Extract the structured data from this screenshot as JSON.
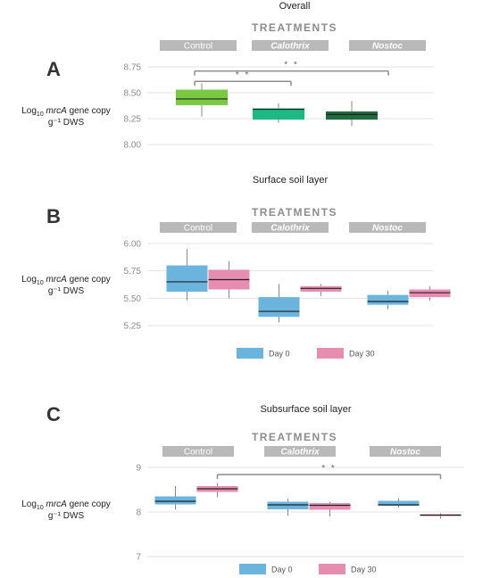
{
  "chart_data": [
    {
      "panel": "A",
      "type": "boxplot",
      "title": "Overall",
      "header": "TREATMENTS",
      "categories": [
        "Control",
        "Calothrix",
        "Nostoc"
      ],
      "category_italic": [
        false,
        true,
        true
      ],
      "ylabel": {
        "pre": "Log",
        "sub": "10",
        "italic": "mrcA",
        "post": " gene copy",
        "line2": "g⁻¹ DWS"
      },
      "ylim": [
        8.0,
        8.75
      ],
      "yticks": [
        8.0,
        8.25,
        8.5,
        8.75
      ],
      "ytick_labels": [
        "8.00",
        "8.25",
        "8.50",
        "8.75"
      ],
      "grid": true,
      "series": [
        {
          "colors": [
            "#7ac943",
            "#1db884",
            "#1f6b3d"
          ],
          "boxes": [
            {
              "min": 8.27,
              "q1": 8.38,
              "median": 8.44,
              "q3": 8.53,
              "max": 8.59
            },
            {
              "min": 8.21,
              "q1": 8.24,
              "median": 8.34,
              "q3": 8.35,
              "max": 8.4
            },
            {
              "min": 8.18,
              "q1": 8.24,
              "median": 8.29,
              "q3": 8.32,
              "max": 8.42
            }
          ]
        }
      ],
      "significance": [
        {
          "from": 0,
          "to": 2,
          "label": "* *",
          "y": 8.71
        },
        {
          "from": 0,
          "to": 1,
          "label": "* *",
          "y": 8.61
        }
      ]
    },
    {
      "panel": "B",
      "type": "boxplot",
      "title": "Surface soil layer",
      "header": "TREATMENTS",
      "categories": [
        "Control",
        "Calothrix",
        "Nostoc"
      ],
      "category_italic": [
        false,
        true,
        true
      ],
      "ylabel": {
        "pre": "Log",
        "sub": "10",
        "italic": "mrcA",
        "post": " gene copy",
        "line2": "g⁻¹ DWS"
      },
      "ylim": [
        5.25,
        6.0
      ],
      "yticks": [
        5.25,
        5.5,
        5.75,
        6.0
      ],
      "ytick_labels": [
        "5.25",
        "5.50",
        "5.75",
        "6.00"
      ],
      "grid": true,
      "legend": [
        {
          "name": "Day 0",
          "color": "#6ab4dd"
        },
        {
          "name": "Day 30",
          "color": "#e78db2"
        }
      ],
      "series": [
        {
          "name": "Day 0",
          "color": "#6ab4dd",
          "boxes": [
            {
              "min": 5.48,
              "q1": 5.56,
              "median": 5.65,
              "q3": 5.8,
              "max": 5.95
            },
            {
              "min": 5.28,
              "q1": 5.33,
              "median": 5.38,
              "q3": 5.51,
              "max": 5.63
            },
            {
              "min": 5.4,
              "q1": 5.44,
              "median": 5.47,
              "q3": 5.53,
              "max": 5.57
            }
          ]
        },
        {
          "name": "Day 30",
          "color": "#e78db2",
          "boxes": [
            {
              "min": 5.5,
              "q1": 5.58,
              "median": 5.67,
              "q3": 5.76,
              "max": 5.84
            },
            {
              "min": 5.52,
              "q1": 5.56,
              "median": 5.59,
              "q3": 5.61,
              "max": 5.63
            },
            {
              "min": 5.48,
              "q1": 5.51,
              "median": 5.55,
              "q3": 5.58,
              "max": 5.61
            }
          ]
        }
      ]
    },
    {
      "panel": "C",
      "type": "boxplot",
      "title": "Subsurface soil layer",
      "header": "TREATMENTS",
      "categories": [
        "Control",
        "Calothrix",
        "Nostoc"
      ],
      "category_italic": [
        false,
        true,
        true
      ],
      "ylabel": {
        "pre": "Log",
        "sub": "10",
        "italic": "mrcA",
        "post": " gene copy",
        "line2": "g⁻¹ DWS"
      },
      "ylim": [
        7.0,
        9.0
      ],
      "yticks": [
        7,
        8,
        9
      ],
      "ytick_labels": [
        "7",
        "8",
        "9"
      ],
      "grid": true,
      "legend": [
        {
          "name": "Day 0",
          "color": "#6ab4dd"
        },
        {
          "name": "Day 30",
          "color": "#e78db2"
        }
      ],
      "series": [
        {
          "name": "Day 0",
          "color": "#6ab4dd",
          "boxes": [
            {
              "min": 8.05,
              "q1": 8.17,
              "median": 8.24,
              "q3": 8.35,
              "max": 8.58
            },
            {
              "min": 7.92,
              "q1": 8.06,
              "median": 8.16,
              "q3": 8.23,
              "max": 8.3
            },
            {
              "min": 8.1,
              "q1": 8.14,
              "median": 8.16,
              "q3": 8.25,
              "max": 8.31
            }
          ]
        },
        {
          "name": "Day 30",
          "color": "#e78db2",
          "boxes": [
            {
              "min": 8.33,
              "q1": 8.45,
              "median": 8.52,
              "q3": 8.58,
              "max": 8.65
            },
            {
              "min": 7.9,
              "q1": 8.05,
              "median": 8.15,
              "q3": 8.2,
              "max": 8.23
            },
            {
              "min": 7.85,
              "q1": 7.91,
              "median": 7.93,
              "q3": 7.95,
              "max": 7.97
            }
          ]
        }
      ],
      "significance": [
        {
          "from_series": 1,
          "from": 0,
          "to": 2,
          "label": "* *",
          "y": 8.84
        }
      ]
    }
  ]
}
